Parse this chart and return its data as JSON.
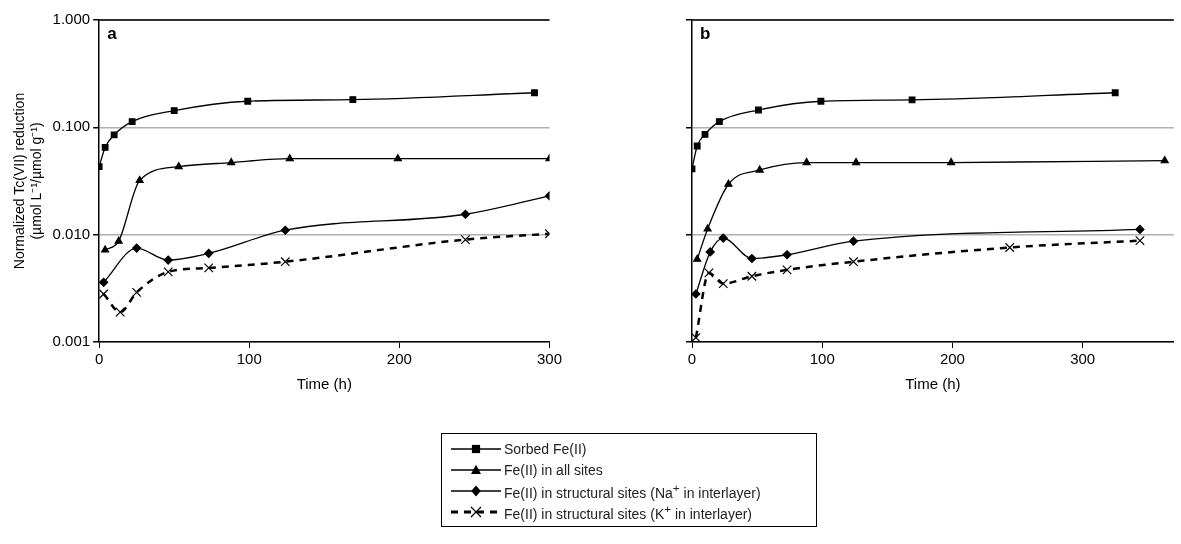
{
  "chart_data": [
    {
      "type": "line",
      "title": "a",
      "ylabel": "Normalized Tc(VII) reduction\n(µmol L⁻¹/µmol g⁻¹)",
      "xlabel": "Time (h)",
      "log": "y",
      "grid": "y",
      "legend": "bottom",
      "xlim": [
        0,
        300
      ],
      "xticks": [
        0,
        100,
        200,
        300
      ],
      "ylim": [
        0.001,
        1
      ],
      "yticks": [
        {
          "value": 0.001,
          "label": "0.001"
        },
        {
          "value": 0.01,
          "label": "0.010"
        },
        {
          "value": 0.1,
          "label": "0.100"
        },
        {
          "value": 1,
          "label": "1.000"
        }
      ],
      "series": [
        {
          "name": "Sorbed Fe(II)",
          "color": "#000000",
          "marker": "square",
          "line_style": "solid",
          "x": [
            0,
            4,
            10,
            22,
            50,
            99,
            169,
            290
          ],
          "values": [
            0.043,
            0.065,
            0.085,
            0.113,
            0.143,
            0.175,
            0.181,
            0.21
          ]
        },
        {
          "name": "Fe(II) in all sites",
          "color": "#000000",
          "marker": "triangle",
          "line_style": "solid",
          "x": [
            4,
            13,
            27,
            53,
            88,
            127,
            199,
            300
          ],
          "values": [
            0.0072,
            0.0087,
            0.032,
            0.043,
            0.047,
            0.051,
            0.051,
            0.051
          ]
        },
        {
          "name": "Fe(II) in structural sites (Na$^{+}$ in interlayer)",
          "color": "#000000",
          "marker": "diamond",
          "line_style": "solid",
          "x": [
            3,
            25,
            46,
            73,
            124,
            244,
            300
          ],
          "values": [
            0.0036,
            0.0075,
            0.0058,
            0.0067,
            0.011,
            0.0155,
            0.023
          ]
        },
        {
          "name": "Fe(II) in structural sites (K$^{+}$ in interlayer)",
          "color": "#000000",
          "marker": "cross",
          "line_style": "dashed",
          "x": [
            3,
            14,
            25,
            46,
            73,
            124,
            244,
            300
          ],
          "values": [
            0.0028,
            0.0019,
            0.0029,
            0.0045,
            0.0049,
            0.0056,
            0.009,
            0.0102
          ]
        }
      ]
    },
    {
      "type": "line",
      "title": "b",
      "xlabel": "Time (h)",
      "log": "y",
      "grid": "y",
      "legend": "bottom",
      "tick_labels": "x",
      "xlim": [
        0,
        370
      ],
      "xticks": [
        0,
        100,
        200,
        300
      ],
      "ylim": [
        0.001,
        1
      ],
      "yticks": [
        {
          "value": 0.001,
          "label": null
        },
        {
          "value": 0.01,
          "label": null
        },
        {
          "value": 0.1,
          "label": null
        },
        {
          "value": 1,
          "label": null
        }
      ],
      "series": [
        {
          "color": "#000000",
          "marker": "square",
          "line_style": "solid",
          "x": [
            0,
            4,
            10,
            21,
            51,
            99,
            169,
            325
          ],
          "values": [
            0.041,
            0.067,
            0.086,
            0.113,
            0.145,
            0.175,
            0.18,
            0.21
          ]
        },
        {
          "color": "#000000",
          "marker": "triangle",
          "line_style": "solid",
          "x": [
            4,
            12,
            28,
            52,
            88,
            126,
            199,
            363
          ],
          "values": [
            0.0059,
            0.0113,
            0.0295,
            0.04,
            0.047,
            0.047,
            0.047,
            0.049
          ]
        },
        {
          "color": "#000000",
          "marker": "diamond",
          "line_style": "solid",
          "x": [
            3,
            14,
            24,
            46,
            73,
            124,
            344
          ],
          "values": [
            0.0028,
            0.0069,
            0.0093,
            0.006,
            0.0065,
            0.0087,
            0.0112
          ]
        },
        {
          "color": "#000000",
          "marker": "cross",
          "line_style": "dashed",
          "x": [
            3,
            13,
            24,
            46,
            73,
            124,
            244,
            344
          ],
          "values": [
            0.0011,
            0.0044,
            0.0035,
            0.0041,
            0.0047,
            0.0056,
            0.0076,
            0.0088
          ]
        }
      ]
    }
  ]
}
